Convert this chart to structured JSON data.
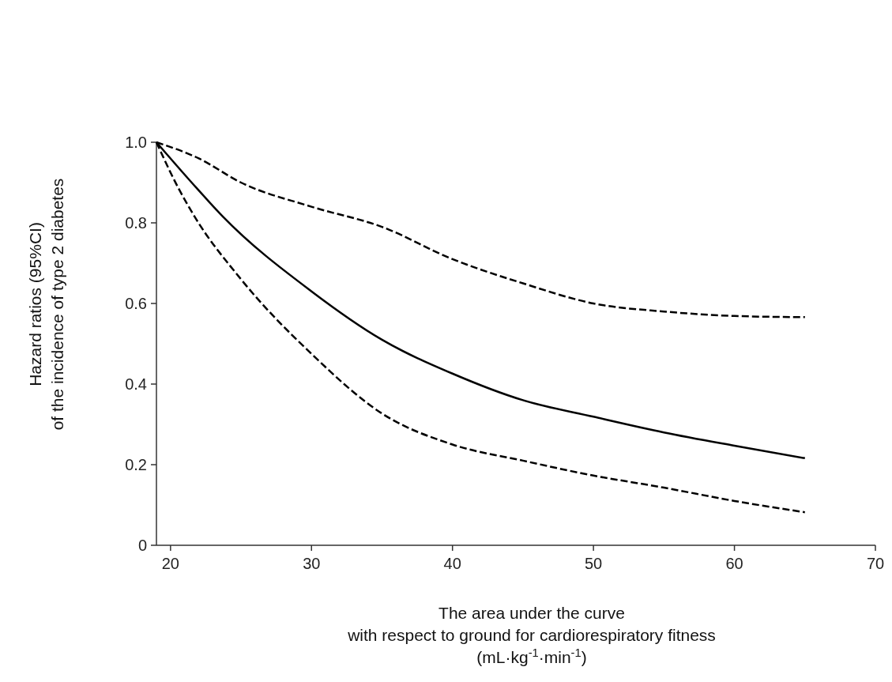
{
  "chart_data": {
    "type": "line",
    "xlabel": "The area under the curve\nwith respect to ground for cardiorespiratory fitness\n(mL·kg$^{-1}$·min$^{-1}$)",
    "ylabel": "Hazard ratios (95%CI)\nof the incidence of type 2 diabetes",
    "xlim": [
      19,
      70
    ],
    "xticks": [
      20,
      30,
      40,
      50,
      60,
      70
    ],
    "ylim": [
      0,
      1
    ],
    "yticks": [
      0,
      0.2,
      0.4,
      0.6,
      0.8,
      {
        "value": 1,
        "label": "1.0"
      }
    ],
    "grid": false,
    "marker": "none",
    "series": [
      {
        "color": "#000000",
        "line_style": "dashed",
        "x": [
          19,
          22,
          25,
          30,
          35,
          40,
          45,
          50,
          55,
          60,
          65
        ],
        "values": [
          1,
          0.96,
          0.9,
          0.84,
          0.79,
          0.71,
          0.65,
          0.6,
          0.58,
          0.569,
          0.566
        ]
      },
      {
        "color": "#000000",
        "line_style": "solid",
        "x": [
          19,
          21.5,
          23.7,
          30,
          35,
          40,
          45,
          50,
          55,
          60,
          65
        ],
        "values": [
          1,
          0.9,
          0.816,
          0.63,
          0.51,
          0.426,
          0.36,
          0.319,
          0.28,
          0.247,
          0.216
        ]
      },
      {
        "color": "#000000",
        "line_style": "dashed",
        "x": [
          19,
          20.5,
          21.7,
          25,
          30,
          35,
          40,
          45,
          50,
          55,
          60,
          65
        ],
        "values": [
          1,
          0.89,
          0.816,
          0.66,
          0.475,
          0.327,
          0.25,
          0.21,
          0.173,
          0.143,
          0.11,
          0.082
        ]
      }
    ]
  }
}
